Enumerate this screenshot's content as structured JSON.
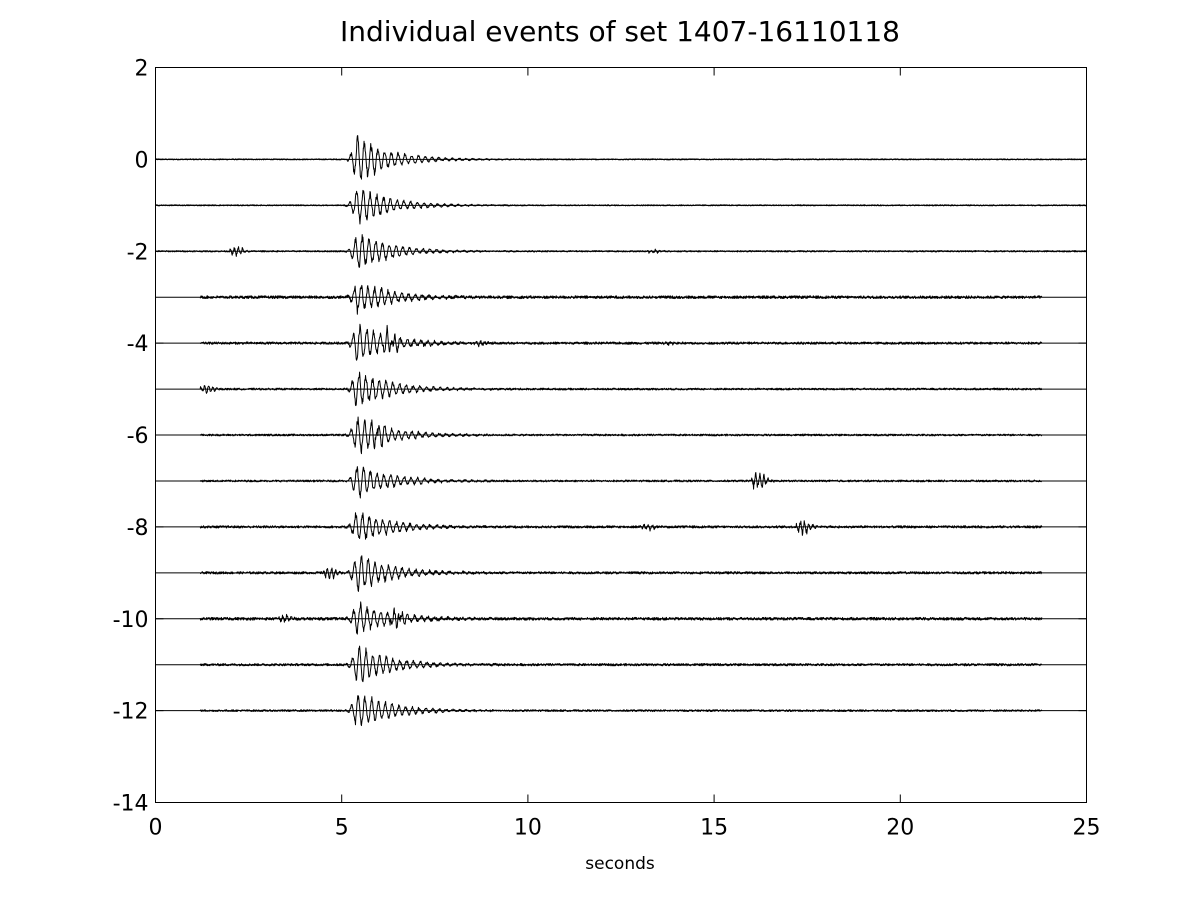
{
  "chart_data": {
    "type": "line",
    "title": "Individual events of set 1407-16110118",
    "xlabel": "seconds",
    "ylabel": "",
    "xlim": [
      0,
      25
    ],
    "ylim": [
      -14,
      2
    ],
    "x_ticks": [
      0,
      5,
      10,
      15,
      20,
      25
    ],
    "y_ticks": [
      2,
      0,
      -2,
      -4,
      -6,
      -8,
      -10,
      -12,
      -14
    ],
    "x_tick_labels": [
      "0",
      "5",
      "10",
      "15",
      "20",
      "25"
    ],
    "y_tick_labels": [
      "2",
      "0",
      "-2",
      "-4",
      "-6",
      "-8",
      "-10",
      "-12",
      "-14"
    ],
    "grid": false,
    "line_color": "#000000",
    "series": [
      {
        "offset": 0,
        "x_start": 0.0,
        "x_end": 25.0,
        "onset": 5.2,
        "peak": 0.55,
        "noise": 0.012,
        "bursts": []
      },
      {
        "offset": -1,
        "x_start": 0.0,
        "x_end": 25.0,
        "onset": 5.2,
        "peak": 0.45,
        "noise": 0.012,
        "bursts": []
      },
      {
        "offset": -2,
        "x_start": 0.0,
        "x_end": 25.0,
        "onset": 5.2,
        "peak": 0.45,
        "noise": 0.015,
        "bursts": [
          {
            "t": 2.2,
            "a": 0.12
          },
          {
            "t": 13.4,
            "a": 0.06
          }
        ]
      },
      {
        "offset": -3,
        "x_start": 1.2,
        "x_end": 23.8,
        "onset": 5.2,
        "peak": 0.4,
        "noise": 0.03,
        "bursts": []
      },
      {
        "offset": -4,
        "x_start": 1.2,
        "x_end": 23.8,
        "onset": 5.2,
        "peak": 0.45,
        "noise": 0.025,
        "bursts": [
          {
            "t": 6.3,
            "a": 0.25
          },
          {
            "t": 8.7,
            "a": 0.06
          },
          {
            "t": 13.8,
            "a": 0.05
          }
        ]
      },
      {
        "offset": -5,
        "x_start": 1.2,
        "x_end": 23.8,
        "onset": 5.2,
        "peak": 0.45,
        "noise": 0.02,
        "bursts": [
          {
            "t": 1.4,
            "a": 0.12
          }
        ]
      },
      {
        "offset": -6,
        "x_start": 1.2,
        "x_end": 23.8,
        "onset": 5.2,
        "peak": 0.45,
        "noise": 0.02,
        "bursts": [
          {
            "t": 6.0,
            "a": 0.15
          }
        ]
      },
      {
        "offset": -7,
        "x_start": 1.2,
        "x_end": 23.8,
        "onset": 5.2,
        "peak": 0.4,
        "noise": 0.02,
        "bursts": [
          {
            "t": 16.2,
            "a": 0.25
          }
        ]
      },
      {
        "offset": -8,
        "x_start": 1.2,
        "x_end": 23.8,
        "onset": 5.2,
        "peak": 0.4,
        "noise": 0.025,
        "bursts": [
          {
            "t": 13.2,
            "a": 0.08
          },
          {
            "t": 17.4,
            "a": 0.2
          }
        ]
      },
      {
        "offset": -9,
        "x_start": 1.2,
        "x_end": 23.8,
        "onset": 5.2,
        "peak": 0.45,
        "noise": 0.025,
        "bursts": [
          {
            "t": 4.7,
            "a": 0.15
          }
        ]
      },
      {
        "offset": -10,
        "x_start": 1.2,
        "x_end": 23.8,
        "onset": 5.2,
        "peak": 0.4,
        "noise": 0.03,
        "bursts": [
          {
            "t": 3.5,
            "a": 0.1
          },
          {
            "t": 6.5,
            "a": 0.2
          }
        ]
      },
      {
        "offset": -11,
        "x_start": 1.2,
        "x_end": 23.8,
        "onset": 5.2,
        "peak": 0.45,
        "noise": 0.025,
        "bursts": []
      },
      {
        "offset": -12,
        "x_start": 1.2,
        "x_end": 23.8,
        "onset": 5.2,
        "peak": 0.45,
        "noise": 0.02,
        "bursts": []
      }
    ]
  }
}
